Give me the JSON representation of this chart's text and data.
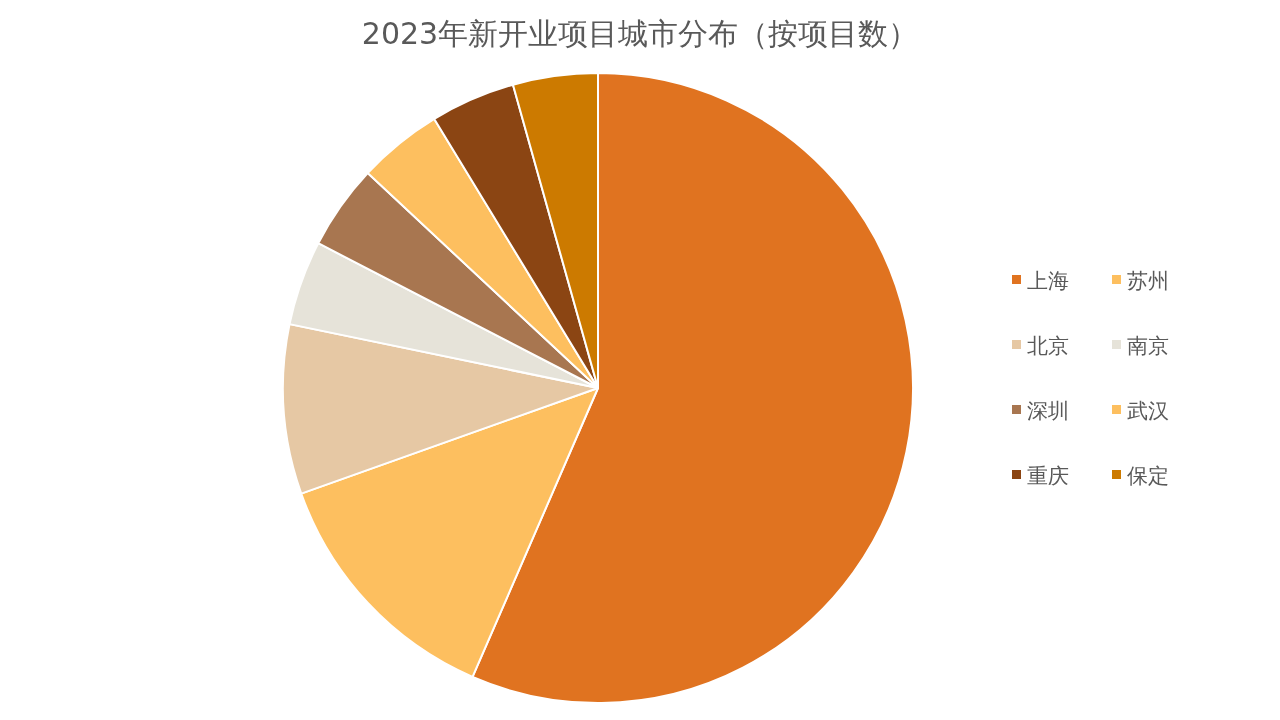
{
  "chart_data": {
    "type": "pie",
    "title": "2023年新开业项目城市分布（按项目数）",
    "categories": [
      "上海",
      "苏州",
      "北京",
      "南京",
      "深圳",
      "武汉",
      "重庆",
      "保定"
    ],
    "values": [
      56.52,
      13.04,
      8.69,
      4.35,
      4.35,
      4.35,
      4.35,
      4.35
    ],
    "colors": [
      "#e07320",
      "#fdbf5f",
      "#e6c8a4",
      "#e6e3d9",
      "#a87650",
      "#fdbf5f",
      "#8b4513",
      "#cc7a00"
    ],
    "legend": "right"
  }
}
